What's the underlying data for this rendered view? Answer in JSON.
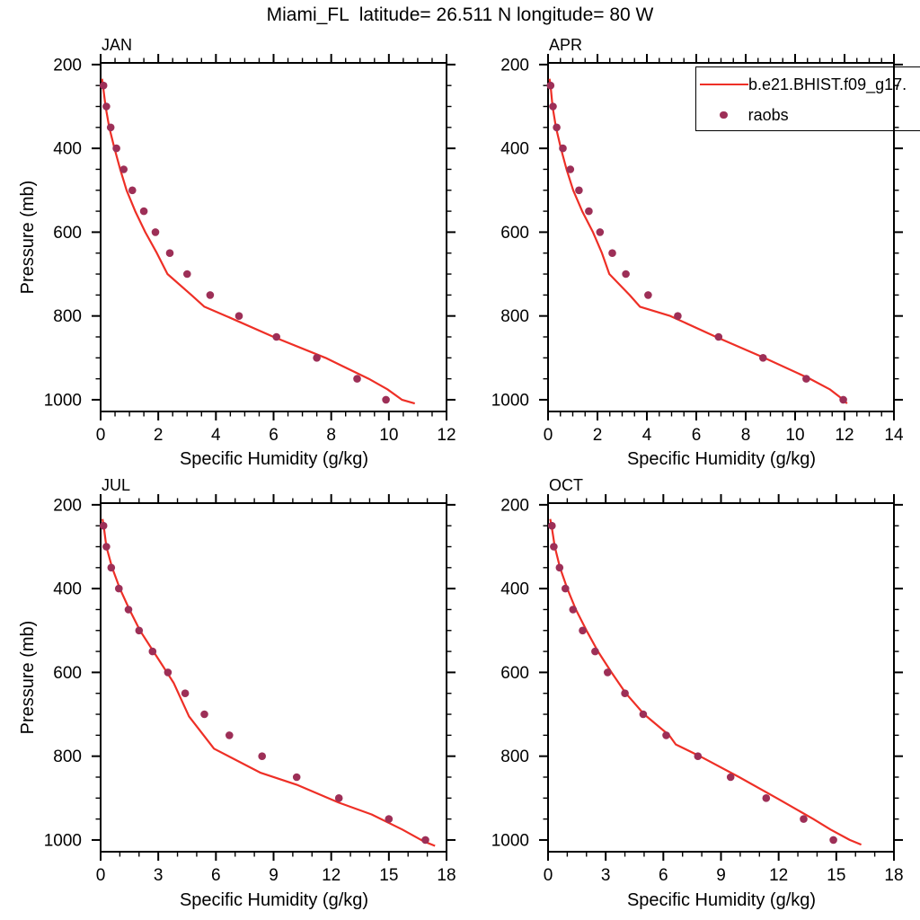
{
  "chart_data": {
    "type": "line",
    "title": "Miami_FL  latitude= 26.511 N longitude= 80 W",
    "xlabel": "Specific Humidity (g/kg)",
    "ylabel": "Pressure (mb)",
    "grid": false,
    "y_axis": {
      "min": 196,
      "max": 1028,
      "inverted": true,
      "major_ticks": [
        200,
        400,
        600,
        800,
        1000
      ],
      "minor_step": 50
    },
    "colors": {
      "model_line": "#ee2f26",
      "raobs_dot": "#9d2f57",
      "axis": "#000000"
    },
    "legend": {
      "position": "top-right-of-APR-panel",
      "entries": [
        {
          "type": "line",
          "label": "b.e21.BHIST.f09_g17."
        },
        {
          "type": "marker",
          "label": "raobs"
        }
      ]
    },
    "raobs_pressures": [
      250,
      300,
      350,
      400,
      450,
      500,
      550,
      600,
      650,
      700,
      750,
      800,
      850,
      900,
      950,
      1000
    ],
    "panels": [
      {
        "id": "jan",
        "label": "JAN",
        "x_axis": {
          "min": 0,
          "max": 12,
          "major_ticks": [
            0,
            2,
            4,
            6,
            8,
            10,
            12
          ],
          "minor_step": 0.5
        },
        "raobs_q": [
          0.1,
          0.2,
          0.35,
          0.55,
          0.8,
          1.1,
          1.5,
          1.9,
          2.4,
          3.0,
          3.8,
          4.8,
          6.1,
          7.5,
          8.9,
          9.9
        ],
        "model": {
          "pressure": [
            234,
            250,
            300,
            350,
            400,
            450,
            500,
            550,
            600,
            650,
            700,
            750,
            778,
            800,
            850,
            900,
            950,
            975,
            1000,
            1009
          ],
          "q": [
            0.05,
            0.08,
            0.17,
            0.3,
            0.48,
            0.68,
            0.9,
            1.2,
            1.55,
            1.95,
            2.32,
            3.15,
            3.6,
            4.35,
            6.0,
            7.8,
            9.3,
            9.95,
            10.45,
            10.9
          ]
        }
      },
      {
        "id": "apr",
        "label": "APR",
        "x_axis": {
          "min": 0,
          "max": 14,
          "major_ticks": [
            0,
            2,
            4,
            6,
            8,
            10,
            12,
            14
          ],
          "minor_step": 0.5
        },
        "raobs_q": [
          0.1,
          0.2,
          0.35,
          0.6,
          0.9,
          1.25,
          1.65,
          2.1,
          2.6,
          3.15,
          4.05,
          5.25,
          6.9,
          8.7,
          10.45,
          11.95
        ],
        "model": {
          "pressure": [
            234,
            250,
            300,
            350,
            400,
            450,
            500,
            550,
            600,
            650,
            700,
            750,
            778,
            800,
            850,
            900,
            950,
            975,
            1000,
            1009
          ],
          "q": [
            0.06,
            0.1,
            0.18,
            0.32,
            0.52,
            0.75,
            1.02,
            1.38,
            1.82,
            2.18,
            2.48,
            3.3,
            3.72,
            4.95,
            6.8,
            8.75,
            10.6,
            11.4,
            11.95,
            12.1
          ]
        }
      },
      {
        "id": "jul",
        "label": "JUL",
        "x_axis": {
          "min": 0,
          "max": 18,
          "major_ticks": [
            0,
            3,
            6,
            9,
            12,
            15,
            18
          ],
          "minor_step": 1
        },
        "raobs_q": [
          0.15,
          0.3,
          0.55,
          0.95,
          1.45,
          2.0,
          2.7,
          3.5,
          4.4,
          5.4,
          6.7,
          8.4,
          10.2,
          12.4,
          15.0,
          16.9
        ],
        "model": {
          "pressure": [
            234,
            250,
            300,
            350,
            400,
            450,
            500,
            550,
            600,
            625,
            705,
            782,
            839,
            868,
            911,
            939,
            975,
            1003,
            1014
          ],
          "q": [
            0.1,
            0.16,
            0.3,
            0.6,
            1.0,
            1.5,
            2.05,
            2.75,
            3.45,
            3.8,
            4.6,
            5.9,
            8.3,
            10.2,
            12.4,
            14.1,
            15.7,
            16.8,
            17.4
          ]
        }
      },
      {
        "id": "oct",
        "label": "OCT",
        "x_axis": {
          "min": 0,
          "max": 18,
          "major_ticks": [
            0,
            3,
            6,
            9,
            12,
            15,
            18
          ],
          "minor_step": 1
        },
        "raobs_q": [
          0.2,
          0.3,
          0.6,
          0.9,
          1.3,
          1.8,
          2.45,
          3.1,
          4.0,
          4.95,
          6.15,
          7.8,
          9.5,
          11.35,
          13.3,
          14.85
        ],
        "model": {
          "pressure": [
            234,
            250,
            300,
            350,
            400,
            450,
            500,
            550,
            600,
            650,
            700,
            750,
            772,
            800,
            850,
            900,
            950,
            975,
            1000,
            1011
          ],
          "q": [
            0.11,
            0.18,
            0.35,
            0.62,
            1.0,
            1.45,
            2.0,
            2.6,
            3.3,
            4.05,
            5.0,
            6.3,
            6.65,
            7.9,
            9.95,
            11.9,
            13.8,
            14.7,
            15.7,
            16.3
          ]
        }
      }
    ]
  }
}
